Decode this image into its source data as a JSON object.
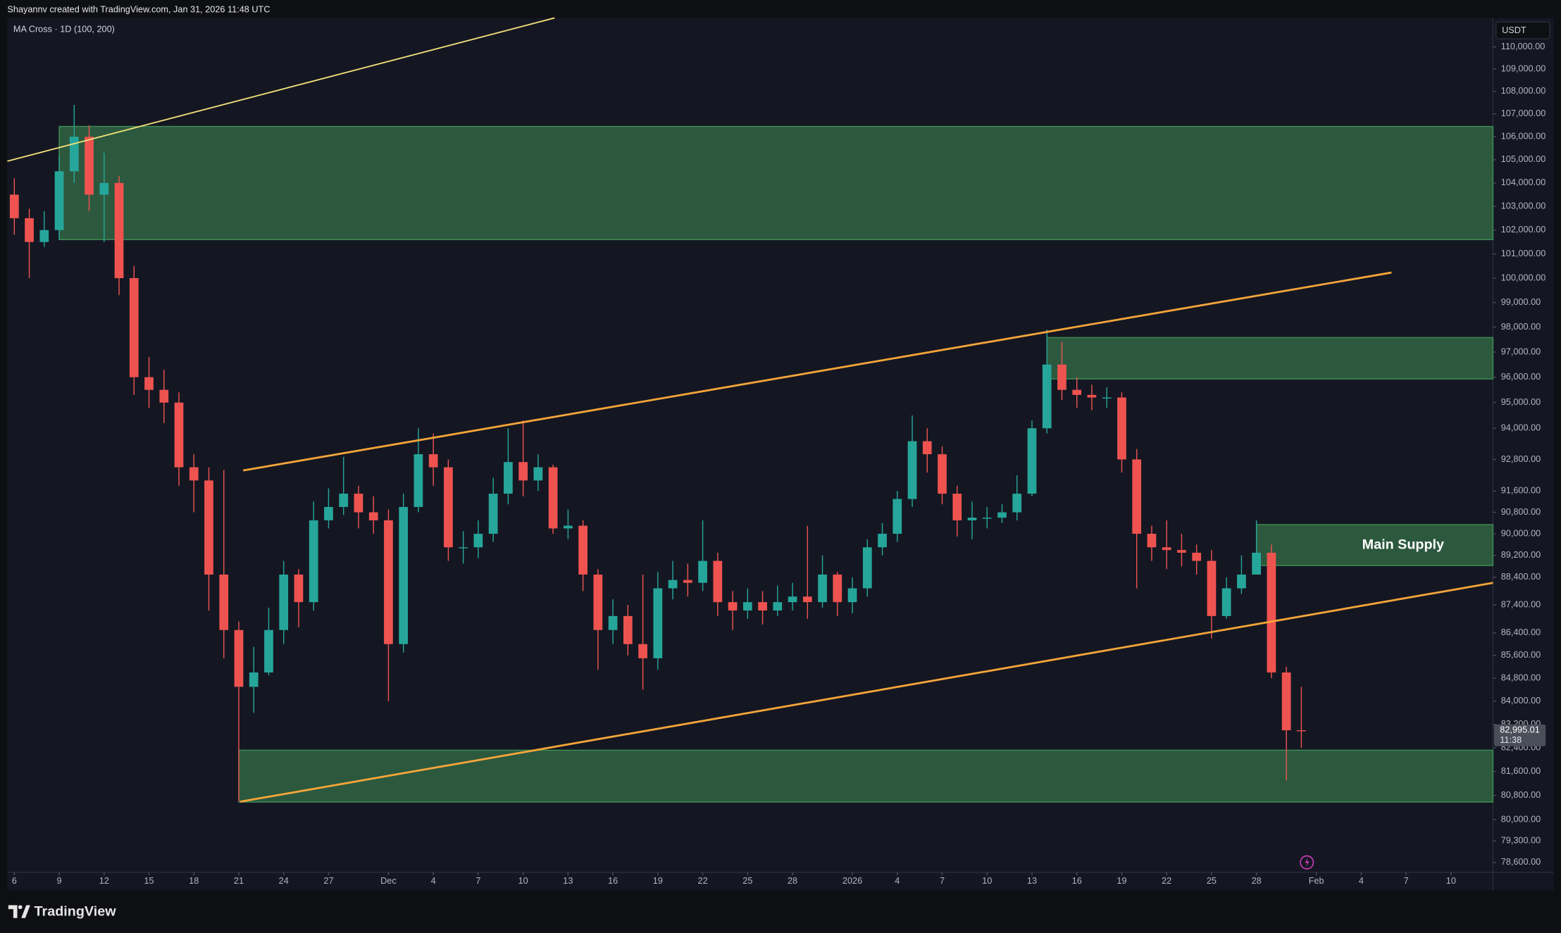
{
  "header": "Shayannv created with TradingView.com, Jan 31, 2026 11:48 UTC",
  "footer_brand": "TradingView",
  "chart_data": {
    "type": "candlestick",
    "indicator": "MA Cross · 1D (100, 200)",
    "currency": "USDT",
    "log_scale": true,
    "grid": false,
    "up_color": "#26a69a",
    "down_color": "#ef5350",
    "zone_color": "#3f8f55",
    "x": [
      "Nov 6",
      "Nov 7",
      "Nov 8",
      "Nov 9",
      "Nov 10",
      "Nov 11",
      "Nov 12",
      "Nov 13",
      "Nov 14",
      "Nov 15",
      "Nov 16",
      "Nov 17",
      "Nov 18",
      "Nov 19",
      "Nov 20",
      "Nov 21",
      "Nov 22",
      "Nov 23",
      "Nov 24",
      "Nov 25",
      "Nov 26",
      "Nov 27",
      "Nov 28",
      "Nov 29",
      "Nov 30",
      "Dec 1",
      "Dec 2",
      "Dec 3",
      "Dec 4",
      "Dec 5",
      "Dec 6",
      "Dec 7",
      "Dec 8",
      "Dec 9",
      "Dec 10",
      "Dec 11",
      "Dec 12",
      "Dec 13",
      "Dec 14",
      "Dec 15",
      "Dec 16",
      "Dec 17",
      "Dec 18",
      "Dec 19",
      "Dec 20",
      "Dec 21",
      "Dec 22",
      "Dec 23",
      "Dec 24",
      "Dec 25",
      "Dec 26",
      "Dec 27",
      "Dec 28",
      "Dec 29",
      "Dec 30",
      "Dec 31",
      "Jan 1",
      "Jan 2",
      "Jan 3",
      "Jan 4",
      "Jan 5",
      "Jan 6",
      "Jan 7",
      "Jan 8",
      "Jan 9",
      "Jan 10",
      "Jan 11",
      "Jan 12",
      "Jan 13",
      "Jan 14",
      "Jan 15",
      "Jan 16",
      "Jan 17",
      "Jan 18",
      "Jan 19",
      "Jan 20",
      "Jan 21",
      "Jan 22",
      "Jan 23",
      "Jan 24",
      "Jan 25",
      "Jan 26",
      "Jan 27",
      "Jan 28",
      "Jan 29",
      "Jan 30",
      "Jan 31"
    ],
    "open": [
      103500,
      102500,
      101500,
      102000,
      104500,
      106000,
      103500,
      104000,
      100000,
      96000,
      95500,
      95000,
      92500,
      92000,
      88500,
      86500,
      84500,
      85000,
      86500,
      88500,
      87500,
      90500,
      91000,
      91500,
      90800,
      90500,
      86000,
      91000,
      93000,
      92500,
      89500,
      89500,
      90000,
      91500,
      92700,
      92000,
      92500,
      90200,
      90300,
      88500,
      86500,
      87000,
      86000,
      85500,
      88000,
      88300,
      88200,
      89000,
      87500,
      87200,
      87500,
      87200,
      87500,
      87700,
      87500,
      88500,
      87500,
      88000,
      89500,
      90000,
      91300,
      93500,
      93000,
      91500,
      90500,
      90600,
      90600,
      90800,
      91500,
      94000,
      96500,
      95500,
      95300,
      95200,
      95200,
      92800,
      90000,
      89500,
      89400,
      89300,
      89000,
      87000,
      88000,
      88500,
      89300,
      85000,
      83000
    ],
    "high": [
      104200,
      102900,
      102800,
      105200,
      107400,
      106500,
      105300,
      104300,
      100500,
      96800,
      96300,
      95400,
      93000,
      92500,
      92400,
      86800,
      85900,
      87300,
      89000,
      88700,
      91200,
      91700,
      92900,
      91800,
      91400,
      90900,
      91500,
      94000,
      93800,
      92800,
      90100,
      90500,
      92100,
      94000,
      94300,
      93000,
      92600,
      90900,
      90500,
      88700,
      87600,
      87400,
      88500,
      88600,
      89000,
      88900,
      90500,
      89300,
      87900,
      88000,
      87900,
      88100,
      88200,
      90300,
      89200,
      88600,
      88400,
      89800,
      90400,
      91600,
      94500,
      94000,
      93300,
      91800,
      91200,
      91000,
      91100,
      92200,
      94300,
      97900,
      97400,
      96000,
      95700,
      95600,
      95400,
      93200,
      90300,
      90500,
      90000,
      89600,
      89400,
      88400,
      89200,
      90500,
      89600,
      85200,
      84500
    ],
    "low": [
      101800,
      100000,
      101300,
      101600,
      104000,
      102800,
      101500,
      99300,
      95300,
      94800,
      94200,
      91800,
      90800,
      87200,
      85500,
      80600,
      83600,
      84900,
      86000,
      86600,
      87200,
      90200,
      90700,
      90200,
      90000,
      84000,
      85700,
      90800,
      91800,
      89000,
      88900,
      89100,
      89700,
      91100,
      91400,
      91600,
      90000,
      89800,
      87900,
      85100,
      86000,
      85600,
      84400,
      85100,
      87600,
      87700,
      87900,
      87000,
      86500,
      86900,
      86700,
      87000,
      87200,
      86900,
      87300,
      87000,
      87100,
      87700,
      89200,
      89700,
      91000,
      92300,
      91100,
      89900,
      89800,
      90200,
      90400,
      90500,
      91400,
      93800,
      95100,
      94800,
      94700,
      94800,
      92300,
      88000,
      89000,
      88700,
      88800,
      88500,
      86200,
      86900,
      87800,
      88500,
      84800,
      81300,
      82400
    ],
    "close": [
      102500,
      101500,
      102000,
      104500,
      106000,
      103500,
      104000,
      100000,
      96000,
      95500,
      95000,
      92500,
      92000,
      88500,
      86500,
      84500,
      85000,
      86500,
      88500,
      87500,
      90500,
      91000,
      91500,
      90800,
      90500,
      86000,
      91000,
      93000,
      92500,
      89500,
      89500,
      90000,
      91500,
      92700,
      92000,
      92500,
      90200,
      90300,
      88500,
      86500,
      87000,
      86000,
      85500,
      88000,
      88300,
      88200,
      89000,
      87500,
      87200,
      87500,
      87200,
      87500,
      87700,
      87500,
      88500,
      87500,
      88000,
      89500,
      90000,
      91300,
      93500,
      93000,
      91500,
      90500,
      90600,
      90600,
      90800,
      91500,
      94000,
      96500,
      95500,
      95300,
      95200,
      95200,
      92800,
      90000,
      89500,
      89400,
      89300,
      89000,
      87000,
      88000,
      88500,
      89300,
      85000,
      83000,
      82995.01
    ],
    "last_price_label": "82,995.01",
    "countdown": "11:38",
    "zones": [
      {
        "from": "Nov 9",
        "low": 101600,
        "high": 106450
      },
      {
        "from": "Jan 14",
        "low": 95930,
        "high": 97580
      },
      {
        "from": "Jan 28",
        "low": 88830,
        "high": 90340,
        "label": "Main Supply"
      },
      {
        "from": "Nov 21",
        "low": 80580,
        "high": 82320
      }
    ],
    "ylim": [
      78280,
      111320
    ],
    "yticks": [
      {
        "value": 110000,
        "label": "110,000.00"
      },
      {
        "value": 109000,
        "label": "109,000.00"
      },
      {
        "value": 108000,
        "label": "108,000.00"
      },
      {
        "value": 107000,
        "label": "107,000.00"
      },
      {
        "value": 106000,
        "label": "106,000.00"
      },
      {
        "value": 105000,
        "label": "105,000.00"
      },
      {
        "value": 104000,
        "label": "104,000.00"
      },
      {
        "value": 103000,
        "label": "103,000.00"
      },
      {
        "value": 102000,
        "label": "102,000.00"
      },
      {
        "value": 101000,
        "label": "101,000.00"
      },
      {
        "value": 100000,
        "label": "100,000.00"
      },
      {
        "value": 99000,
        "label": "99,000.00"
      },
      {
        "value": 98000,
        "label": "98,000.00"
      },
      {
        "value": 97000,
        "label": "97,000.00"
      },
      {
        "value": 96000,
        "label": "96,000.00"
      },
      {
        "value": 95000,
        "label": "95,000.00"
      },
      {
        "value": 94000,
        "label": "94,000.00"
      },
      {
        "value": 92800,
        "label": "92,800.00"
      },
      {
        "value": 91600,
        "label": "91,600.00"
      },
      {
        "value": 90800,
        "label": "90,800.00"
      },
      {
        "value": 90000,
        "label": "90,000.00"
      },
      {
        "value": 89200,
        "label": "89,200.00"
      },
      {
        "value": 88400,
        "label": "88,400.00"
      },
      {
        "value": 87400,
        "label": "87,400.00"
      },
      {
        "value": 86400,
        "label": "86,400.00"
      },
      {
        "value": 85600,
        "label": "85,600.00"
      },
      {
        "value": 84800,
        "label": "84,800.00"
      },
      {
        "value": 84000,
        "label": "84,000.00"
      },
      {
        "value": 83200,
        "label": "83,200.00"
      },
      {
        "value": 82400,
        "label": "82,400.00"
      },
      {
        "value": 81600,
        "label": "81,600.00"
      },
      {
        "value": 80800,
        "label": "80,800.00"
      },
      {
        "value": 80000,
        "label": "80,000.00"
      },
      {
        "value": 79300,
        "label": "79,300.00"
      },
      {
        "value": 78600,
        "label": "78,600.00"
      }
    ],
    "xticks": [
      {
        "value": "Nov 6",
        "label": "6"
      },
      {
        "value": "Nov 9",
        "label": "9"
      },
      {
        "value": "Nov 12",
        "label": "12"
      },
      {
        "value": "Nov 15",
        "label": "15"
      },
      {
        "value": "Nov 18",
        "label": "18"
      },
      {
        "value": "Nov 21",
        "label": "21"
      },
      {
        "value": "Nov 24",
        "label": "24"
      },
      {
        "value": "Nov 27",
        "label": "27"
      },
      {
        "value": "Dec 1",
        "label": "Dec"
      },
      {
        "value": "Dec 4",
        "label": "4"
      },
      {
        "value": "Dec 7",
        "label": "7"
      },
      {
        "value": "Dec 10",
        "label": "10"
      },
      {
        "value": "Dec 13",
        "label": "13"
      },
      {
        "value": "Dec 16",
        "label": "16"
      },
      {
        "value": "Dec 19",
        "label": "19"
      },
      {
        "value": "Dec 22",
        "label": "22"
      },
      {
        "value": "Dec 25",
        "label": "25"
      },
      {
        "value": "Dec 28",
        "label": "28"
      },
      {
        "value": "Jan 1",
        "label": "2026"
      },
      {
        "value": "Jan 4",
        "label": "4"
      },
      {
        "value": "Jan 7",
        "label": "7"
      },
      {
        "value": "Jan 10",
        "label": "10"
      },
      {
        "value": "Jan 13",
        "label": "13"
      },
      {
        "value": "Jan 16",
        "label": "16"
      },
      {
        "value": "Jan 19",
        "label": "19"
      },
      {
        "value": "Jan 22",
        "label": "22"
      },
      {
        "value": "Jan 25",
        "label": "25"
      },
      {
        "value": "Jan 28",
        "label": "28"
      },
      {
        "value": "Feb 1",
        "label": "Feb"
      },
      {
        "value": "Feb 4",
        "label": "4"
      },
      {
        "value": "Feb 7",
        "label": "7"
      },
      {
        "value": "Feb 10",
        "label": "10"
      }
    ]
  }
}
